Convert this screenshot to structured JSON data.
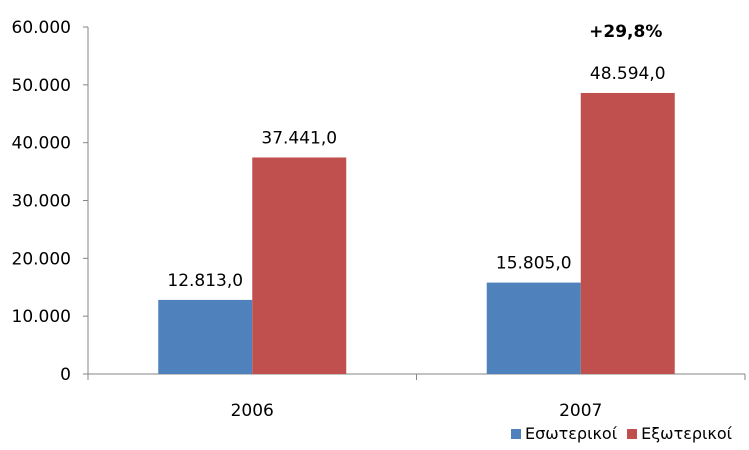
{
  "chart_data": {
    "type": "bar",
    "categories": [
      "2006",
      "2007"
    ],
    "series": [
      {
        "name": "Εσωτερικοί",
        "color": "#4f81bd",
        "values": [
          12813,
          15805
        ],
        "labels": [
          "12.813,0",
          "15.805,0"
        ]
      },
      {
        "name": "Εξωτερικοί",
        "color": "#c0504d",
        "values": [
          37441,
          48594
        ],
        "labels": [
          "37.441,0",
          "48.594,0"
        ]
      }
    ],
    "ylim": [
      0,
      60000
    ],
    "yticks": [
      0,
      10000,
      20000,
      30000,
      40000,
      50000,
      60000
    ],
    "ytick_labels": [
      "0",
      "10.000",
      "20.000",
      "30.000",
      "40.000",
      "50.000",
      "60.000"
    ],
    "annotation": {
      "text": "+29,8%",
      "category_index": 1,
      "series_index": 1
    },
    "grid": false,
    "legend_position": "bottom-right",
    "title": "",
    "xlabel": "",
    "ylabel": ""
  }
}
